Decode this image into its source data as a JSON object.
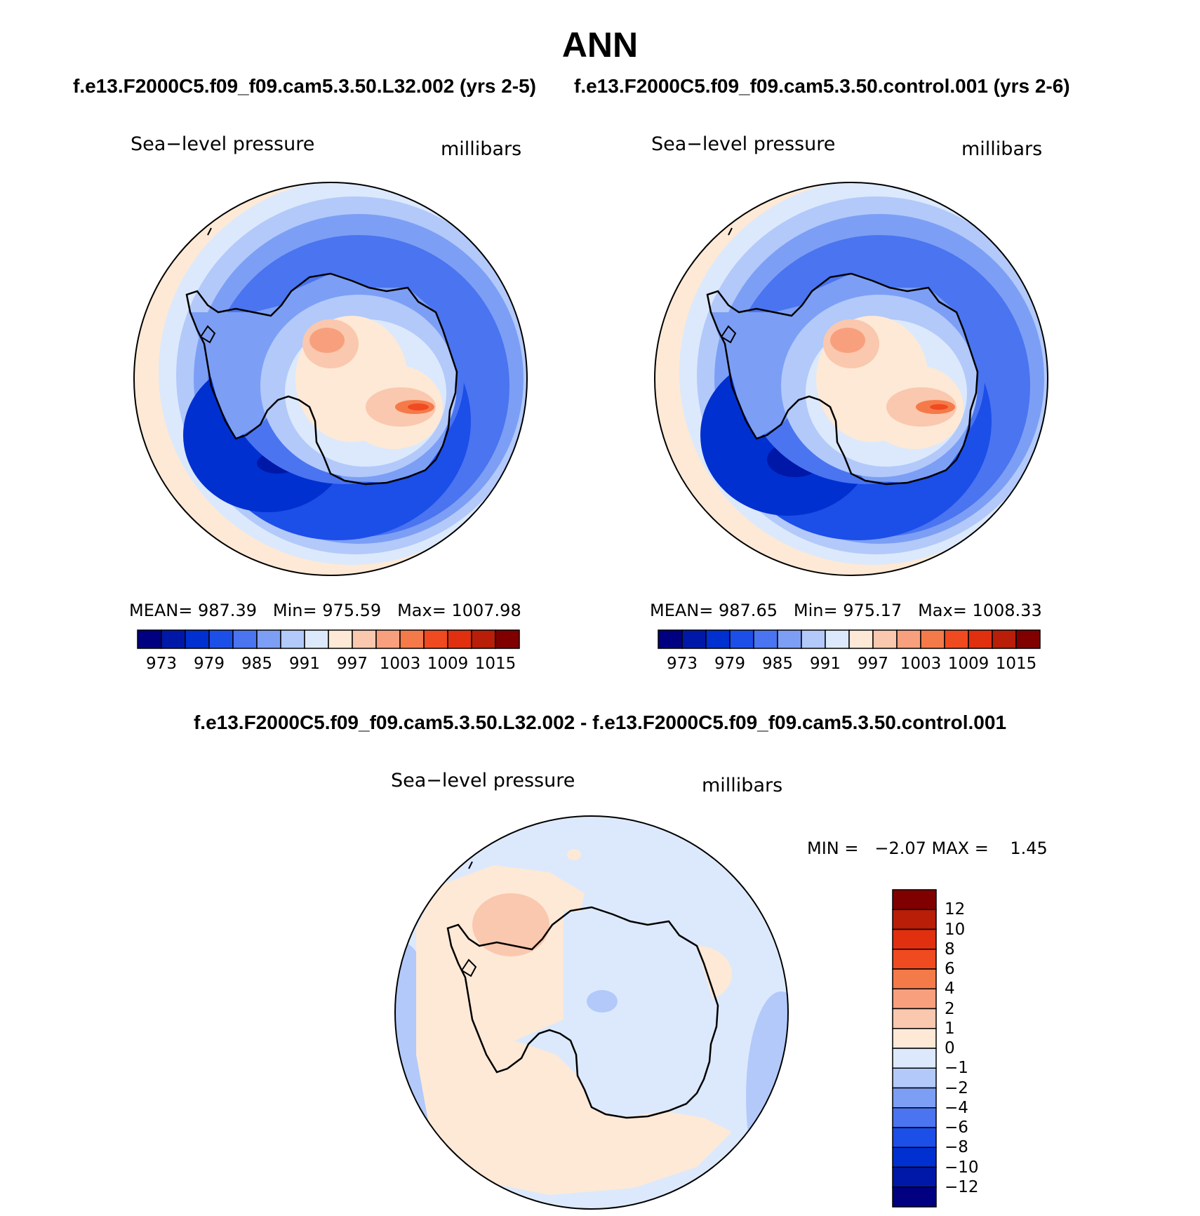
{
  "title": "ANN",
  "panels": [
    {
      "run": "f.e13.F2000C5.f09_f09.cam5.3.50.L32.002 (yrs 2-5)",
      "variable": "Sea−level pressure",
      "units": "millibars",
      "mean_label": "MEAN=",
      "mean": "987.39",
      "min_label": "Min=",
      "min": "975.59",
      "max_label": "Max=",
      "max": "1007.98"
    },
    {
      "run": "f.e13.F2000C5.f09_f09.cam5.3.50.control.001 (yrs 2-6)",
      "variable": "Sea−level pressure",
      "units": "millibars",
      "mean_label": "MEAN=",
      "mean": "987.65",
      "min_label": "Min=",
      "min": "975.17",
      "max_label": "Max=",
      "max": "1008.33"
    }
  ],
  "diff": {
    "title": "f.e13.F2000C5.f09_f09.cam5.3.50.L32.002 - f.e13.F2000C5.f09_f09.cam5.3.50.control.001",
    "variable": "Sea−level pressure",
    "units": "millibars",
    "minmax": "MIN =   −2.07 MAX =    1.45"
  },
  "colorbar_abs": {
    "colors": [
      "#000080",
      "#0018a8",
      "#0030d0",
      "#1c4ee8",
      "#4a74f0",
      "#7c9ff5",
      "#b2c9fa",
      "#dce9fc",
      "#fde9d6",
      "#fac8ae",
      "#f8a07e",
      "#f57a4a",
      "#f04a20",
      "#e03010",
      "#b81e08",
      "#800000"
    ],
    "ticks": [
      "973",
      "979",
      "985",
      "991",
      "997",
      "1003",
      "1009",
      "1015"
    ]
  },
  "colorbar_diff": {
    "colors": [
      "#000080",
      "#0018a8",
      "#0030d0",
      "#1c4ee8",
      "#4a74f0",
      "#7c9ff5",
      "#b2c9fa",
      "#dce9fc",
      "#fde9d6",
      "#fac8ae",
      "#f8a07e",
      "#f57a4a",
      "#f04a20",
      "#e03010",
      "#b81e08",
      "#800000"
    ],
    "ticks": [
      "−12",
      "−10",
      "−8",
      "−6",
      "−4",
      "−2",
      "−1",
      "0",
      "1",
      "2",
      "4",
      "6",
      "8",
      "10",
      "12"
    ]
  }
}
